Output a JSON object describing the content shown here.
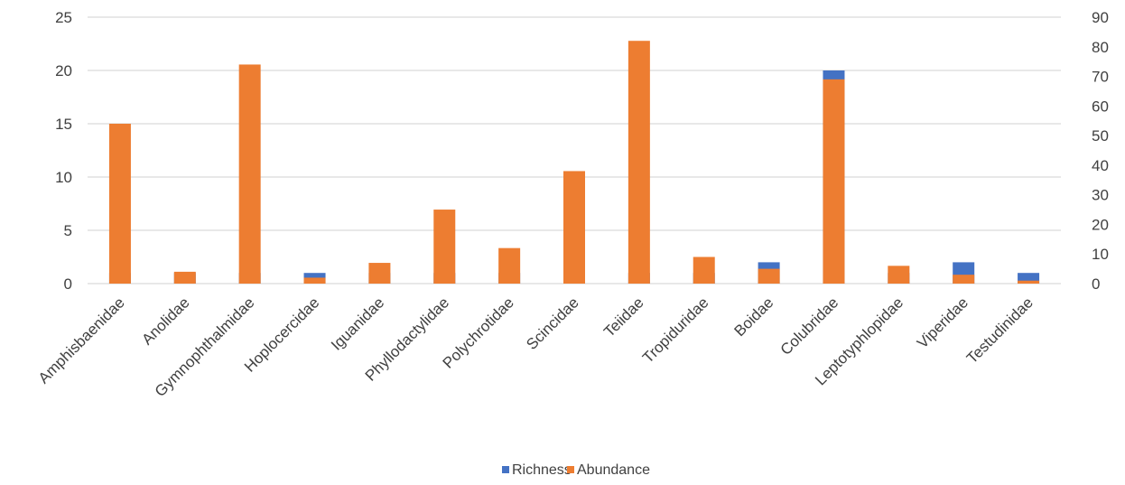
{
  "chart_data": {
    "type": "bar",
    "stacked": true,
    "categories": [
      "Amphisbaenidae",
      "Anolidae",
      "Gymnophthalmidae",
      "Hoplocercidae",
      "Iguanidae",
      "Phyllodactylidae",
      "Polychrotidae",
      "Scincidae",
      "Teiidae",
      "Tropiduridae",
      "Boidae",
      "Colubridae",
      "Leptotyphlopidae",
      "Viperidae",
      "Testudinidae"
    ],
    "series": [
      {
        "name": "Richness",
        "axis": "left",
        "color": "#4472C4",
        "values": [
          1,
          1,
          1,
          1,
          1,
          1,
          1,
          1,
          1,
          1,
          2,
          20,
          1,
          2,
          1
        ]
      },
      {
        "name": "Abundance",
        "axis": "right",
        "color": "#ED7D31",
        "values": [
          54,
          4,
          74,
          2,
          7,
          25,
          12,
          38,
          82,
          9,
          5,
          69,
          6,
          3,
          1
        ]
      }
    ],
    "left_axis": {
      "ylim": [
        0,
        25
      ],
      "ticks": [
        "0",
        "5",
        "10",
        "15",
        "20",
        "25"
      ]
    },
    "right_axis": {
      "ylim": [
        0,
        90
      ],
      "ticks": [
        "0",
        "10",
        "20",
        "30",
        "40",
        "50",
        "60",
        "70",
        "80",
        "90"
      ]
    },
    "grid": true,
    "legend_position": "bottom"
  }
}
